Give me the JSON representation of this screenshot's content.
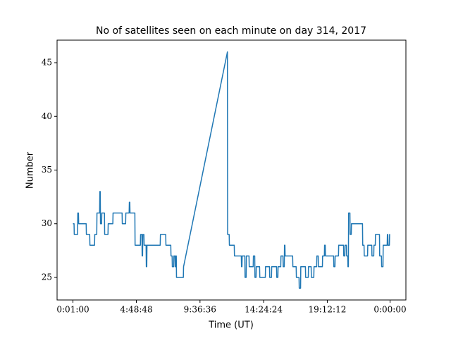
{
  "chart_data": {
    "type": "line",
    "title": "No of satellites seen on each minute on day 314, 2017",
    "x_label": "Time (UT)",
    "y_label": "Number",
    "x": [
      1,
      6,
      7,
      22,
      23,
      26,
      27,
      61,
      62,
      77,
      78,
      99,
      100,
      109,
      110,
      122,
      123,
      125,
      126,
      131,
      132,
      144,
      145,
      160,
      161,
      182,
      183,
      224,
      225,
      240,
      241,
      256,
      257,
      259,
      260,
      282,
      283,
      307,
      308,
      314,
      315,
      317,
      318,
      323,
      324,
      333,
      334,
      336,
      337,
      397,
      398,
      422,
      423,
      445,
      446,
      451,
      452,
      458,
      459,
      464,
      465,
      467,
      468,
      470,
      471,
      502,
      503,
      702,
      703,
      710,
      711,
      733,
      734,
      765,
      766,
      768,
      769,
      781,
      782,
      787,
      788,
      800,
      801,
      819,
      820,
      826,
      827,
      832,
      833,
      848,
      849,
      874,
      875,
      893,
      894,
      902,
      903,
      925,
      926,
      931,
      932,
      944,
      945,
      954,
      955,
      960,
      961,
      963,
      964,
      998,
      999,
      1014,
      1015,
      1027,
      1028,
      1034,
      1035,
      1056,
      1057,
      1069,
      1070,
      1082,
      1083,
      1094,
      1095,
      1107,
      1108,
      1114,
      1115,
      1133,
      1134,
      1142,
      1143,
      1146,
      1147,
      1184,
      1185,
      1190,
      1191,
      1206,
      1207,
      1229,
      1230,
      1235,
      1236,
      1242,
      1243,
      1248,
      1249,
      1251,
      1252,
      1258,
      1259,
      1264,
      1265,
      1315,
      1316,
      1322,
      1323,
      1338,
      1339,
      1357,
      1358,
      1366,
      1367,
      1373,
      1374,
      1392,
      1393,
      1401,
      1402,
      1408,
      1409,
      1427,
      1428,
      1430,
      1431,
      1437,
      1438,
      1440
    ],
    "series": [
      {
        "name": "Number",
        "color": "#1f77b4",
        "values": [
          30,
          30,
          29,
          29,
          31,
          31,
          30,
          30,
          29,
          29,
          28,
          28,
          29,
          29,
          31,
          31,
          33,
          33,
          30,
          30,
          31,
          31,
          29,
          29,
          30,
          30,
          31,
          31,
          30,
          30,
          31,
          31,
          32,
          32,
          31,
          31,
          28,
          28,
          29,
          29,
          27,
          27,
          29,
          29,
          28,
          28,
          26,
          26,
          28,
          28,
          29,
          29,
          28,
          28,
          27,
          27,
          26,
          26,
          27,
          27,
          26,
          26,
          27,
          27,
          25,
          25,
          26,
          46,
          29,
          29,
          28,
          28,
          27,
          27,
          26,
          26,
          27,
          27,
          25,
          25,
          27,
          27,
          26,
          26,
          27,
          27,
          25,
          25,
          26,
          26,
          25,
          25,
          26,
          26,
          25,
          25,
          26,
          26,
          25,
          25,
          26,
          26,
          27,
          27,
          26,
          26,
          28,
          28,
          27,
          27,
          26,
          26,
          25,
          25,
          24,
          24,
          26,
          26,
          25,
          25,
          26,
          26,
          25,
          25,
          26,
          26,
          27,
          27,
          26,
          26,
          27,
          27,
          28,
          28,
          27,
          27,
          26,
          26,
          27,
          27,
          28,
          28,
          27,
          27,
          28,
          28,
          27,
          27,
          26,
          26,
          31,
          31,
          29,
          29,
          30,
          30,
          28,
          28,
          27,
          27,
          28,
          28,
          27,
          27,
          28,
          28,
          29,
          29,
          27,
          27,
          26,
          26,
          28,
          28,
          29,
          29,
          28,
          28,
          29,
          29
        ]
      }
    ],
    "xlim": [
      -71,
      1512
    ],
    "xticks": [
      {
        "value": 1,
        "label": "0:01:00"
      },
      {
        "value": 288.8,
        "label": "4:48:48"
      },
      {
        "value": 577.6,
        "label": "9:36:36"
      },
      {
        "value": 866.4,
        "label": "14:24:24"
      },
      {
        "value": 1155.2,
        "label": "19:12:12"
      },
      {
        "value": 1440,
        "label": "0:00:00"
      }
    ],
    "ylim": [
      22.9,
      47.1
    ],
    "yticks": [
      25,
      30,
      35,
      40,
      45
    ],
    "grid": false
  }
}
